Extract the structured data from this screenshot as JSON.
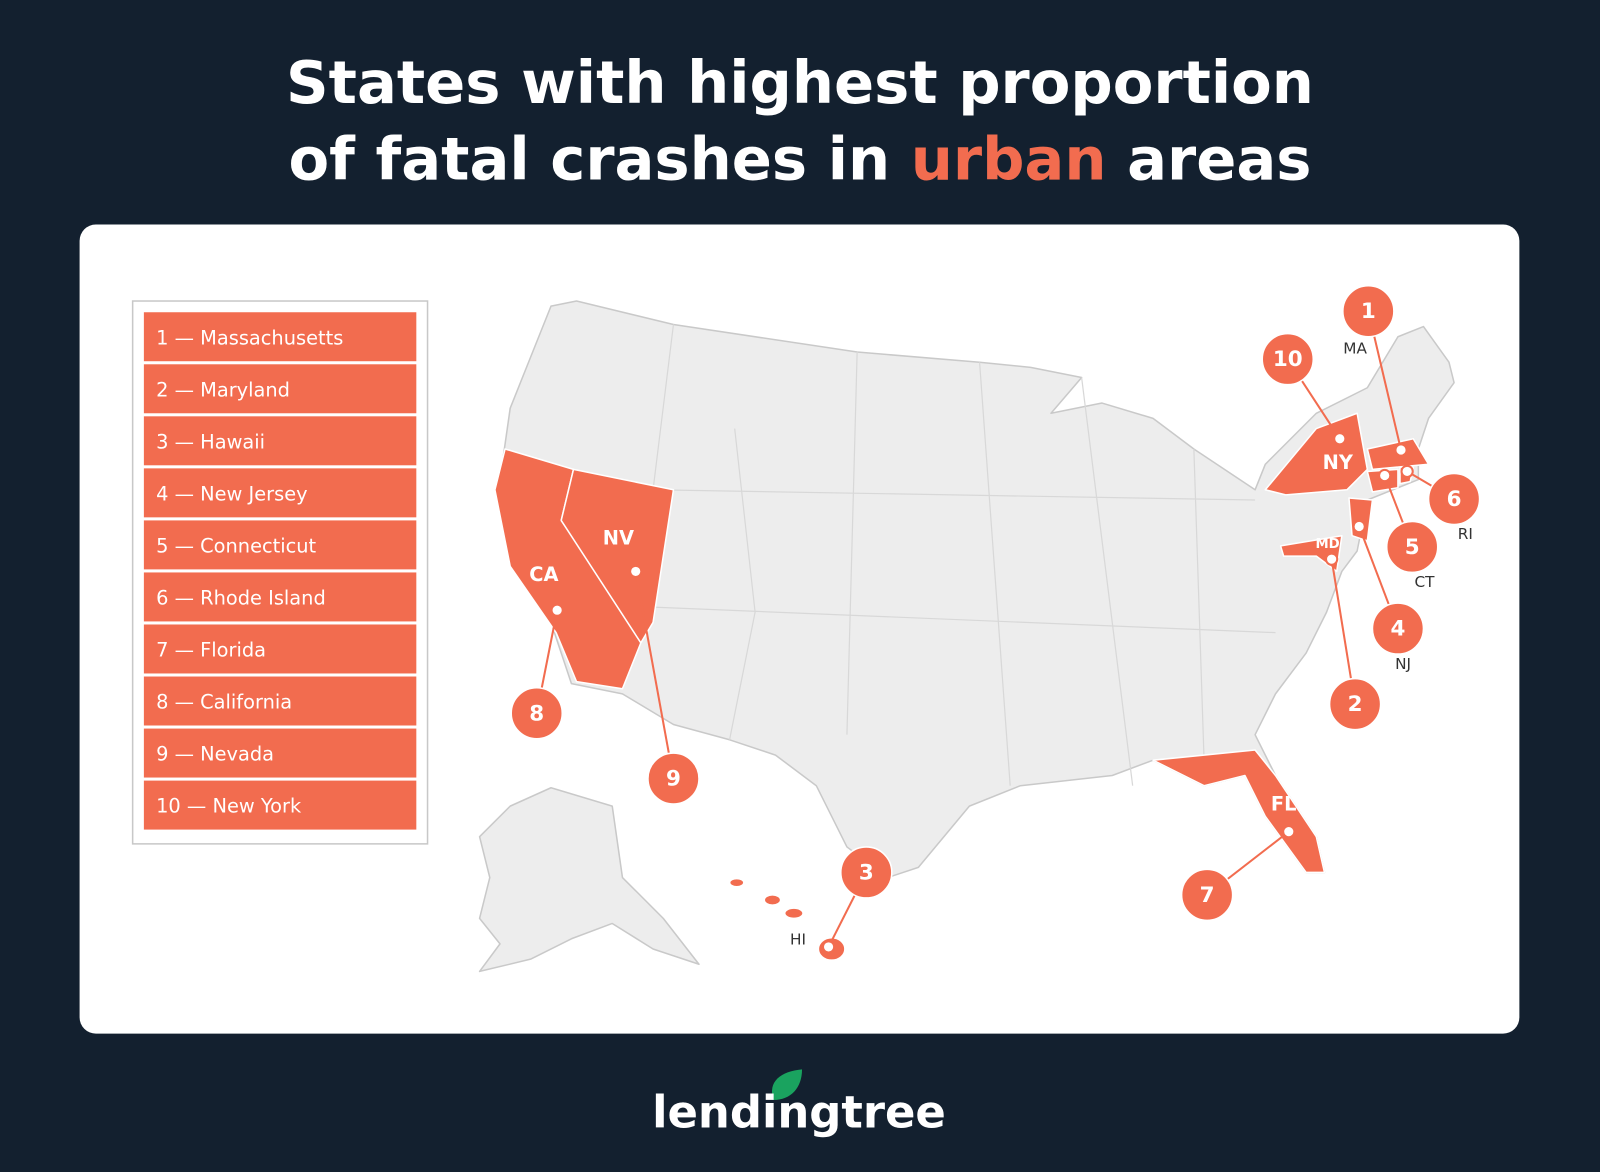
{
  "header": {
    "title_line1": "States with highest proportion",
    "title_line2_start": "of fatal crashes in",
    "title_highlight": "urban",
    "title_line2_end": "areas"
  },
  "legend": {
    "items": [
      "1 — Massachusetts",
      "2 — Maryland",
      "3 — Hawaii",
      "4 — New Jersey",
      "5 — Connecticut",
      "6 — Rhode Island",
      "7 — Florida",
      "8 — California",
      "9 — Nevada",
      "10 — New York"
    ]
  },
  "map": {
    "callouts": [
      {
        "rank": 1,
        "abbr": "MA"
      },
      {
        "rank": 2,
        "abbr": "MD"
      },
      {
        "rank": 3,
        "abbr": "HI"
      },
      {
        "rank": 4,
        "abbr": "NJ"
      },
      {
        "rank": 5,
        "abbr": "CT"
      },
      {
        "rank": 6,
        "abbr": "RI"
      },
      {
        "rank": 7,
        "abbr": "FL"
      },
      {
        "rank": 8,
        "abbr": "CA"
      },
      {
        "rank": 9,
        "abbr": "NV"
      },
      {
        "rank": 10,
        "abbr": "NY"
      }
    ]
  },
  "footer": {
    "logo": "lendingtree"
  }
}
